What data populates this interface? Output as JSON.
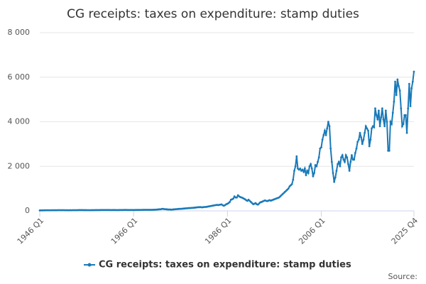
{
  "chart_data": {
    "type": "line",
    "title": "CG receipts: taxes on expenditure: stamp duties",
    "source": "Source:",
    "categories": [
      "1946 Q1",
      null,
      null,
      null,
      null,
      null,
      null,
      null,
      null,
      null,
      null,
      null,
      null,
      null,
      null,
      null,
      null,
      null,
      null,
      null,
      null,
      null,
      null,
      null,
      null,
      null,
      null,
      null,
      null,
      null,
      null,
      null,
      null,
      null,
      null,
      null,
      null,
      null,
      null,
      null,
      null,
      null,
      null,
      null,
      null,
      null,
      null,
      null,
      null,
      null,
      null,
      null,
      null,
      null,
      null,
      null,
      null,
      null,
      null,
      null,
      null,
      null,
      null,
      null,
      null,
      null,
      null,
      null,
      null,
      null,
      null,
      null,
      null,
      null,
      null,
      null,
      null,
      null,
      null,
      null,
      "1966 Q1",
      null,
      null,
      null,
      null,
      null,
      null,
      null,
      null,
      null,
      null,
      null,
      null,
      null,
      null,
      null,
      null,
      null,
      null,
      null,
      null,
      null,
      null,
      null,
      null,
      null,
      null,
      null,
      null,
      null,
      null,
      null,
      null,
      null,
      null,
      null,
      null,
      null,
      null,
      null,
      null,
      null,
      null,
      null,
      null,
      null,
      null,
      null,
      null,
      null,
      null,
      null,
      null,
      null,
      null,
      null,
      null,
      null,
      null,
      null,
      null,
      null,
      null,
      null,
      null,
      null,
      null,
      null,
      null,
      null,
      null,
      null,
      null,
      null,
      null,
      null,
      null,
      null,
      null,
      null,
      "1986 Q1",
      null,
      null,
      null,
      null,
      null,
      null,
      null,
      null,
      null,
      null,
      null,
      null,
      null,
      null,
      null,
      null,
      null,
      null,
      null,
      null,
      null,
      null,
      null,
      null,
      null,
      null,
      null,
      null,
      null,
      null,
      null,
      null,
      null,
      null,
      null,
      null,
      null,
      null,
      null,
      null,
      null,
      null,
      null,
      null,
      null,
      null,
      null,
      null,
      null,
      null,
      null,
      null,
      null,
      null,
      null,
      null,
      null,
      null,
      null,
      null,
      null,
      null,
      null,
      null,
      null,
      null,
      null,
      null,
      null,
      null,
      null,
      null,
      null,
      null,
      null,
      null,
      null,
      null,
      null,
      "2006 Q1",
      null,
      null,
      null,
      null,
      null,
      null,
      null,
      null,
      null,
      null,
      null,
      null,
      null,
      null,
      null,
      null,
      null,
      null,
      null,
      null,
      null,
      null,
      null,
      null,
      null,
      null,
      null,
      null,
      null,
      null,
      null,
      null,
      null,
      null,
      null,
      null,
      null,
      null,
      null,
      null,
      null,
      null,
      null,
      null,
      null,
      null,
      null,
      null,
      null,
      null,
      null,
      null,
      null,
      null,
      null,
      null,
      null,
      null,
      null,
      null,
      null,
      null,
      null,
      null,
      null,
      null,
      null,
      null,
      null,
      null,
      null,
      null,
      null,
      null,
      null,
      null,
      null,
      null,
      "2025 Q4"
    ],
    "series": [
      {
        "name": "CG receipts: taxes on expenditure: stamp duties",
        "color": "#1a7ab8",
        "values": [
          20,
          22,
          24,
          25,
          26,
          28,
          27,
          29,
          28,
          27,
          29,
          30,
          29,
          30,
          28,
          31,
          30,
          31,
          32,
          30,
          31,
          30,
          29,
          31,
          28,
          29,
          30,
          29,
          30,
          31,
          32,
          31,
          33,
          34,
          35,
          34,
          35,
          34,
          33,
          34,
          32,
          31,
          32,
          33,
          33,
          34,
          33,
          35,
          34,
          35,
          36,
          37,
          38,
          39,
          40,
          41,
          40,
          39,
          38,
          39,
          38,
          37,
          38,
          39,
          38,
          37,
          36,
          37,
          38,
          39,
          40,
          41,
          42,
          43,
          42,
          41,
          40,
          39,
          40,
          41,
          40,
          41,
          42,
          43,
          42,
          43,
          44,
          45,
          46,
          47,
          48,
          49,
          48,
          47,
          46,
          47,
          48,
          50,
          52,
          55,
          60,
          65,
          70,
          72,
          85,
          90,
          80,
          75,
          70,
          65,
          60,
          62,
          55,
          60,
          65,
          70,
          75,
          80,
          85,
          90,
          90,
          95,
          100,
          105,
          110,
          115,
          120,
          125,
          125,
          130,
          135,
          140,
          145,
          150,
          160,
          165,
          165,
          170,
          160,
          165,
          170,
          175,
          180,
          190,
          200,
          210,
          220,
          230,
          240,
          250,
          260,
          270,
          260,
          270,
          280,
          290,
          250,
          230,
          260,
          300,
          320,
          350,
          400,
          500,
          520,
          550,
          650,
          600,
          600,
          700,
          650,
          620,
          600,
          580,
          550,
          520,
          480,
          450,
          500,
          450,
          400,
          350,
          300,
          320,
          350,
          300,
          280,
          330,
          380,
          400,
          420,
          450,
          470,
          450,
          440,
          460,
          480,
          460,
          480,
          500,
          520,
          540,
          560,
          580,
          600,
          650,
          700,
          750,
          800,
          850,
          900,
          950,
          1000,
          1100,
          1150,
          1200,
          1400,
          1800,
          2000,
          2450,
          1900,
          1850,
          1900,
          1800,
          1850,
          1750,
          1900,
          1600,
          1800,
          1700,
          2000,
          2100,
          1900,
          1550,
          1700,
          2050,
          2000,
          2200,
          2400,
          2800,
          2850,
          3200,
          3400,
          3600,
          3400,
          3700,
          4000,
          3800,
          2800,
          2200,
          1700,
          1300,
          1500,
          1800,
          2100,
          2200,
          2000,
          2400,
          2500,
          2300,
          2200,
          2500,
          2400,
          2100,
          1800,
          2200,
          2500,
          2300,
          2300,
          2600,
          2800,
          3100,
          3200,
          3500,
          3300,
          3000,
          3200,
          3500,
          3800,
          3700,
          3600,
          2900,
          3200,
          3700,
          3800,
          3750,
          4600,
          4300,
          4100,
          4500,
          3800,
          4200,
          4600,
          4100,
          3800,
          4500,
          4000,
          2700,
          2700,
          4000,
          3900,
          4400,
          4900,
          5800,
          5200,
          5900,
          5600,
          5400,
          4600,
          3800,
          3900,
          4300,
          4300,
          3500,
          4600,
          5700,
          4700,
          5500,
          5800,
          6250
        ]
      }
    ],
    "ylim": [
      0,
      8000
    ],
    "yticks": [
      0,
      {
        "value": 2000,
        "label": "2 000"
      },
      {
        "value": 4000,
        "label": "4 000"
      },
      {
        "value": 6000,
        "label": "6 000"
      },
      {
        "value": 8000,
        "label": "8 000"
      }
    ],
    "grid": true
  }
}
